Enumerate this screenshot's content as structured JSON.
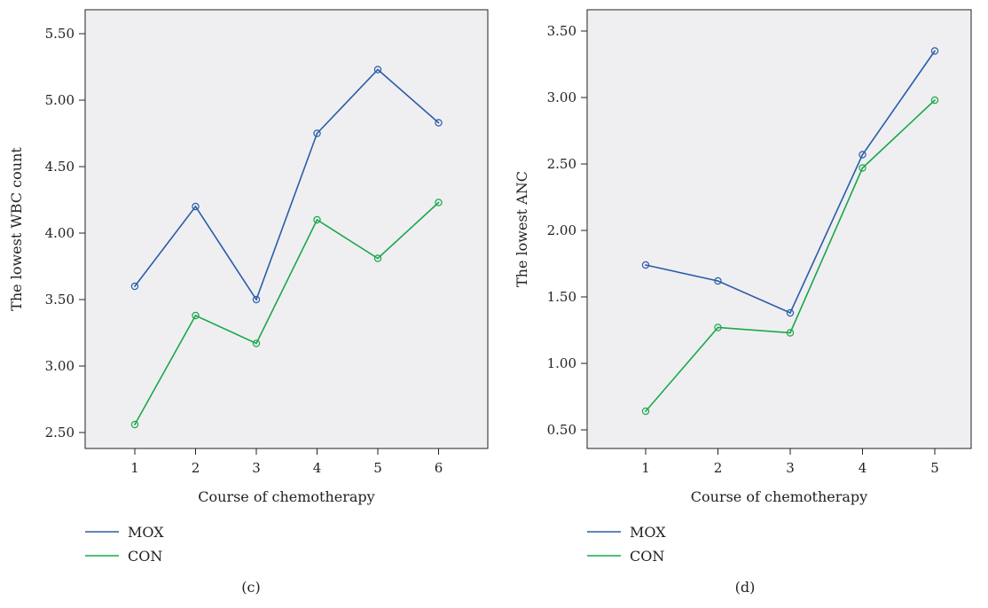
{
  "chart_data": [
    {
      "type": "line",
      "panel_label": "(c)",
      "xlabel": "Course of chemotherapy",
      "ylabel": "The lowest WBC count",
      "categories": [
        "1",
        "2",
        "3",
        "4",
        "5",
        "6"
      ],
      "yticks": [
        "2.50",
        "3.00",
        "3.50",
        "4.00",
        "4.50",
        "5.00",
        "5.50"
      ],
      "ylim": [
        2.38,
        5.68
      ],
      "grid": false,
      "legend_position": "bottom-left",
      "series": [
        {
          "name": "MOX",
          "color": "#2b5ca8",
          "values": [
            3.6,
            4.2,
            3.5,
            4.75,
            5.23,
            4.83
          ]
        },
        {
          "name": "CON",
          "color": "#19a84a",
          "values": [
            2.56,
            3.38,
            3.17,
            4.1,
            3.81,
            4.23
          ]
        }
      ]
    },
    {
      "type": "line",
      "panel_label": "(d)",
      "xlabel": "Course of chemotherapy",
      "ylabel": "The lowest ANC",
      "categories": [
        "1",
        "2",
        "3",
        "4",
        "5"
      ],
      "yticks": [
        "0.50",
        "1.00",
        "1.50",
        "2.00",
        "2.50",
        "3.00",
        "3.50"
      ],
      "ylim": [
        0.36,
        3.66
      ],
      "grid": false,
      "legend_position": "bottom-left",
      "series": [
        {
          "name": "MOX",
          "color": "#2b5ca8",
          "values": [
            1.74,
            1.62,
            1.38,
            2.57,
            3.35
          ]
        },
        {
          "name": "CON",
          "color": "#19a84a",
          "values": [
            0.64,
            1.27,
            1.23,
            2.47,
            2.98
          ]
        }
      ]
    }
  ],
  "colors": {
    "plot_background": "#efeff2",
    "axis": "#222222"
  }
}
